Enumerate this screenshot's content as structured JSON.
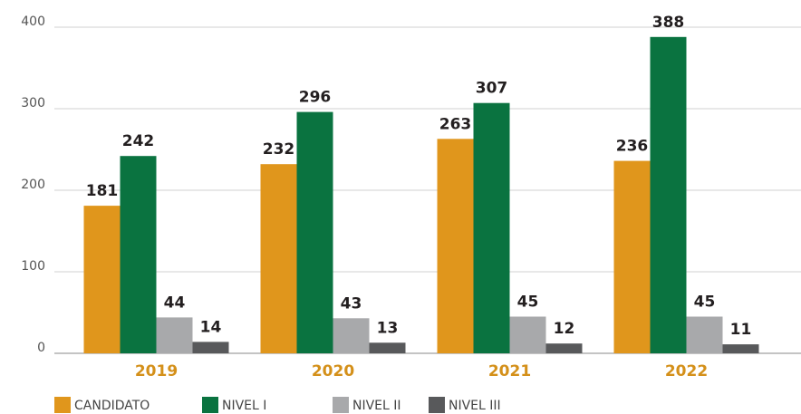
{
  "chart_data": {
    "type": "bar",
    "categories": [
      "2019",
      "2020",
      "2021",
      "2022"
    ],
    "series": [
      {
        "name": "CANDIDATO",
        "color": "#e0961c",
        "values": [
          181,
          232,
          263,
          236
        ]
      },
      {
        "name": "NIVEL I",
        "color": "#0a7340",
        "values": [
          242,
          296,
          307,
          388
        ]
      },
      {
        "name": "NIVEL II",
        "color": "#a8a9ab",
        "values": [
          44,
          43,
          45,
          45
        ]
      },
      {
        "name": "NIVEL III",
        "color": "#58595b",
        "values": [
          14,
          13,
          12,
          11
        ]
      }
    ],
    "ylim": [
      0,
      400
    ],
    "yticks": [
      0,
      100,
      200,
      300,
      400
    ],
    "grid": true,
    "category_color": "#d4901a",
    "legend": "bottom-left"
  }
}
